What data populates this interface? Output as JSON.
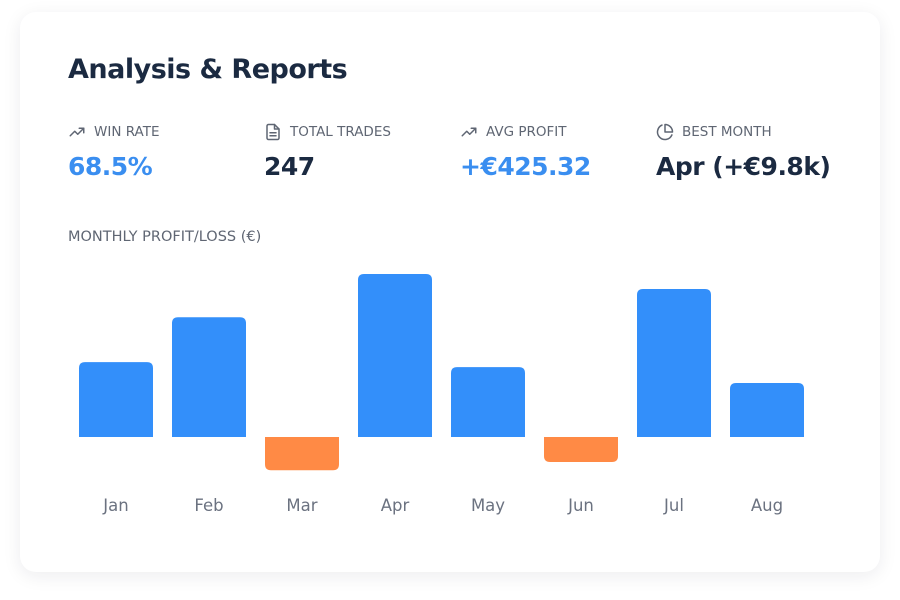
{
  "header": {
    "title": "Analysis & Reports"
  },
  "stats": [
    {
      "label": "WIN RATE",
      "value": "68.5%",
      "icon": "trending-up-icon",
      "accent": true
    },
    {
      "label": "TOTAL TRADES",
      "value": "247",
      "icon": "document-icon",
      "accent": false
    },
    {
      "label": "AVG PROFIT",
      "value": "+€425.32",
      "icon": "trending-up-icon",
      "accent": true
    },
    {
      "label": "BEST MONTH",
      "value": "Apr (+€9.8k)",
      "icon": "pie-chart-icon",
      "accent": false
    }
  ],
  "colors": {
    "positive": "#338ffa",
    "negative": "#ff8a45",
    "accent_text": "#3a8ef0",
    "dark_text": "#1b2a41"
  },
  "chart_data": {
    "type": "bar",
    "title": "MONTHLY PROFIT/LOSS (€)",
    "categories": [
      "Jan",
      "Feb",
      "Mar",
      "Apr",
      "May",
      "Jun",
      "Jul",
      "Aug"
    ],
    "values": [
      4500,
      7200,
      -2000,
      9800,
      4200,
      -1500,
      8900,
      3250
    ],
    "grid": false,
    "legend": "none"
  }
}
